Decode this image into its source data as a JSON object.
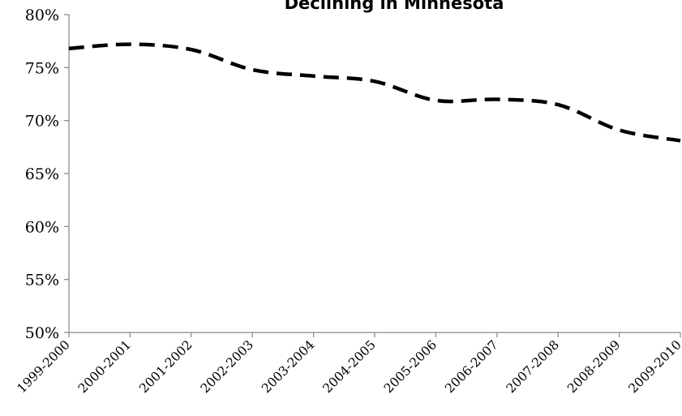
{
  "chart_data": {
    "type": "line",
    "title": "Declining in Minnesota",
    "xlabel": "",
    "ylabel": "",
    "categories": [
      "1999-2000",
      "2000-2001",
      "2001-2002",
      "2002-2003",
      "2003-2004",
      "2004-2005",
      "2005-2006",
      "2006-2007",
      "2007-2008",
      "2008-2009",
      "2009-2010"
    ],
    "series": [
      {
        "values": [
          76.8,
          77.2,
          76.7,
          74.8,
          74.2,
          73.7,
          71.9,
          72.0,
          71.5,
          69.1,
          68.1
        ]
      }
    ],
    "ylim": [
      50,
      80
    ],
    "yticks": [
      50,
      55,
      60,
      65,
      70,
      75,
      80
    ],
    "ytick_labels": [
      "50%",
      "55%",
      "60%",
      "65%",
      "70%",
      "75%",
      "80%"
    ],
    "grid": false,
    "legend": "none",
    "line_style": "dashed",
    "line_color": "#000000"
  }
}
